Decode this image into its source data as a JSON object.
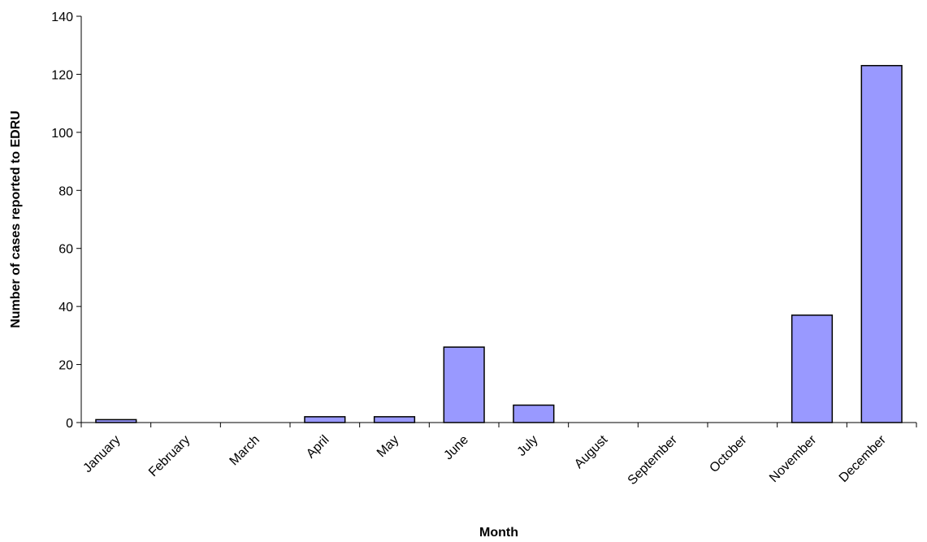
{
  "chart_data": {
    "type": "bar",
    "categories": [
      "January",
      "February",
      "March",
      "April",
      "May",
      "June",
      "July",
      "August",
      "September",
      "October",
      "November",
      "December"
    ],
    "values": [
      1,
      0,
      0,
      2,
      2,
      26,
      6,
      0,
      0,
      0,
      37,
      123
    ],
    "xlabel": "Month",
    "ylabel": "Number of cases reported to EDRU",
    "ylim": [
      0,
      140
    ],
    "yticks": [
      0,
      20,
      40,
      60,
      80,
      100,
      120,
      140
    ],
    "bar_color": "#9999ff",
    "grid": false,
    "legend": "none"
  }
}
